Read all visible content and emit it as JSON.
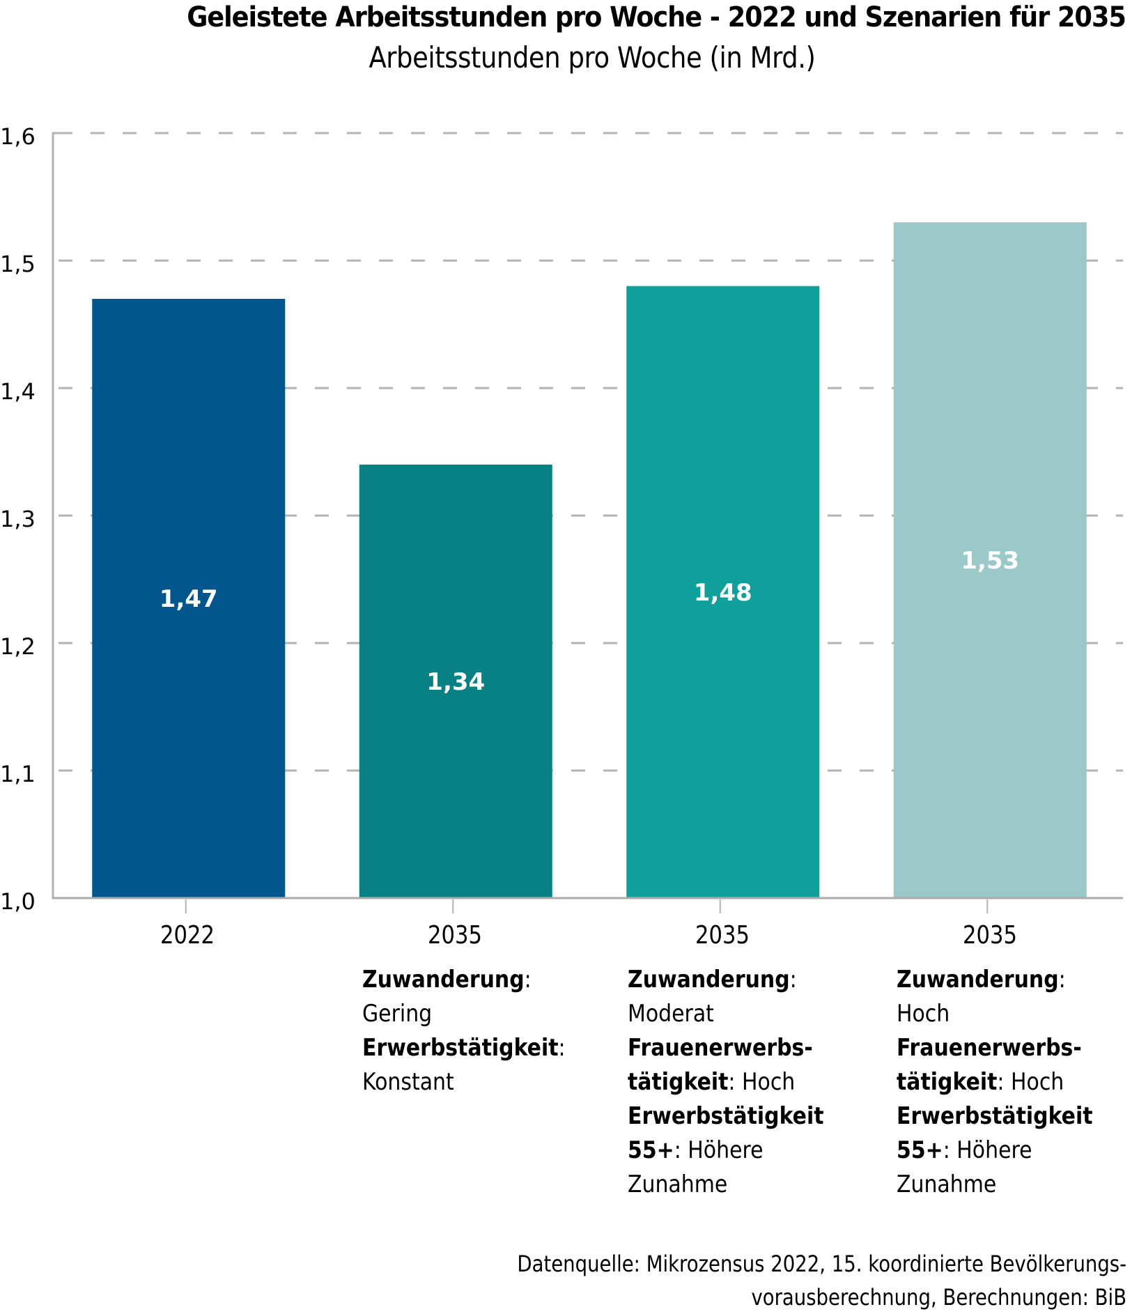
{
  "chart_data": {
    "type": "bar",
    "title": "Geleistete Arbeitsstunden pro Woche - 2022 und Szenarien für 2035",
    "subtitle": "Arbeitsstunden pro Woche (in Mrd.)",
    "xlabel": "",
    "ylabel": "",
    "ylim": [
      1.0,
      1.6
    ],
    "yticks": [
      1.0,
      1.1,
      1.2,
      1.3,
      1.4,
      1.5,
      1.6
    ],
    "ytick_labels": [
      "1,0",
      "1,1",
      "1,2",
      "1,3",
      "1,4",
      "1,5",
      "1,6"
    ],
    "grid": true,
    "grid_style": "dashed",
    "categories": [
      "2022",
      "2035",
      "2035",
      "2035"
    ],
    "values": [
      1.47,
      1.34,
      1.48,
      1.53
    ],
    "value_labels": [
      "1,47",
      "1,34",
      "1,48",
      "1,53"
    ],
    "colors": [
      "#01568e",
      "#088184",
      "#10a09c",
      "#9bc8c8"
    ],
    "scenario_descriptions": [
      [],
      [
        {
          "key": "Zuwanderung",
          "value": "Gering"
        },
        {
          "key": "Erwerbstätigkeit",
          "value": "Konstant"
        }
      ],
      [
        {
          "key": "Zuwanderung",
          "value": "Moderat"
        },
        {
          "key": "Frauenerwerbstätigkeit",
          "value": "Hoch"
        },
        {
          "key": "Erwerbstätigkeit 55+",
          "value": "Höhere Zunahme"
        }
      ],
      [
        {
          "key": "Zuwanderung",
          "value": "Hoch"
        },
        {
          "key": "Frauenerwerbstätigkeit",
          "value": "Hoch"
        },
        {
          "key": "Erwerbstätigkeit 55+",
          "value": "Höhere Zunahme"
        }
      ]
    ],
    "source": "Datenquelle: Mikrozensus 2022, 15. koordinierte Bevölkerungsvorausberechnung, Berechnungen: BiB"
  },
  "header": {
    "title": "Geleistete Arbeitsstunden pro Woche - 2022 und Szenarien für 2035",
    "subtitle": "Arbeitsstunden pro Woche (in Mrd.)"
  },
  "xaxis": {
    "years": [
      "2022",
      "2035",
      "2035",
      "2035"
    ],
    "desc": {
      "s1": {
        "l1_key": "Zuwanderung",
        "l1_sep": ":",
        "l2_val": "Gering",
        "l3_key": "Erwerbstätigkeit",
        "l3_sep": ":",
        "l4_val": "Konstant"
      },
      "s2": {
        "l1_key": "Zuwanderung",
        "l1_sep": ":",
        "l2_val": "Moderat",
        "l3_key": "Frauenerwerbs-",
        "l4_key": "tätigkeit",
        "l4_sep": ": ",
        "l4_val": "Hoch",
        "l5_key": "Erwerbstätigkeit",
        "l6_key": "55+",
        "l6_sep": ": ",
        "l6_val": "Höhere",
        "l7_val": "Zunahme"
      },
      "s3": {
        "l1_key": "Zuwanderung",
        "l1_sep": ":",
        "l2_val": "Hoch",
        "l3_key": "Frauenerwerbs-",
        "l4_key": "tätigkeit",
        "l4_sep": ": ",
        "l4_val": "Hoch",
        "l5_key": "Erwerbstätigkeit",
        "l6_key": "55+",
        "l6_sep": ": ",
        "l6_val": "Höhere",
        "l7_val": "Zunahme"
      }
    }
  },
  "footer": {
    "source_line1": "Datenquelle: Mikrozensus 2022, 15. koordinierte Bevölkerungs-",
    "source_line2": "vorausberechnung, Berechnungen: BiB"
  }
}
